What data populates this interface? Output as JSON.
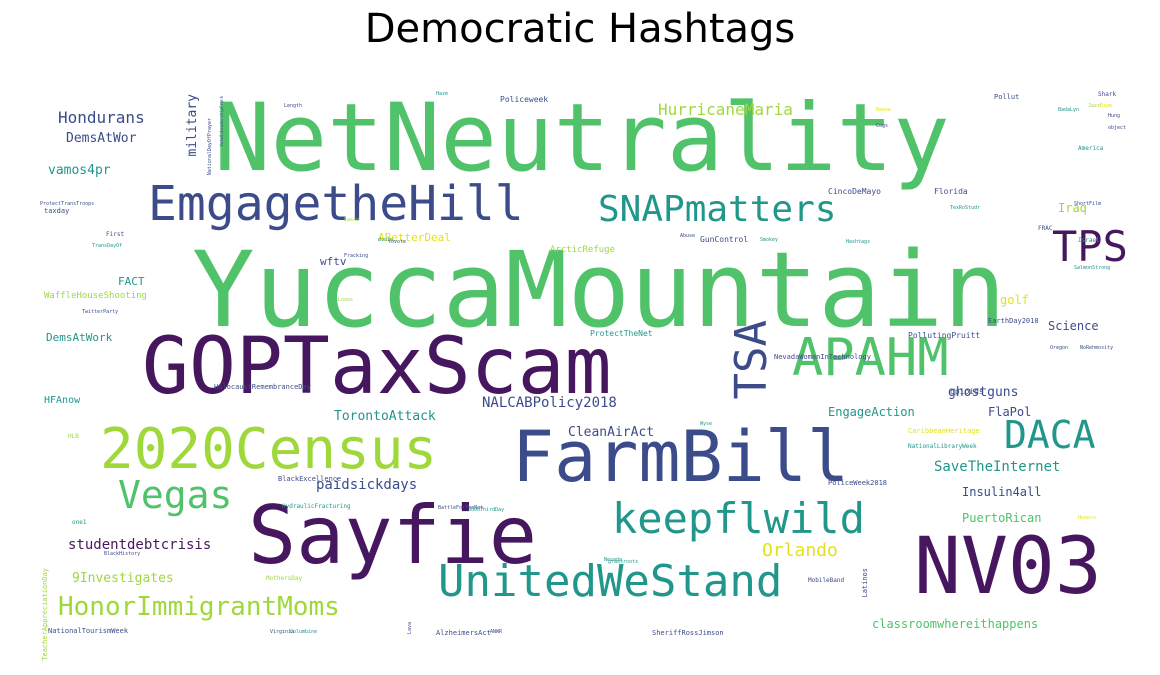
{
  "title": "Democratic Hashtags",
  "palette": {
    "purple": "#46175e",
    "darkblue": "#3c4c8a",
    "teal": "#21968b",
    "green": "#50c26a",
    "lime": "#9fd83b",
    "yellow": "#e3e21a"
  },
  "words": [
    {
      "text": "NetNeutrality",
      "color": "#50c26a",
      "weight": 100
    },
    {
      "text": "YuccaMountain",
      "color": "#50c26a",
      "weight": 98
    },
    {
      "text": "GOPTaxScam",
      "color": "#46175e",
      "weight": 80
    },
    {
      "text": "Sayfie",
      "color": "#46175e",
      "weight": 78
    },
    {
      "text": "FarmBill",
      "color": "#3c4c8a",
      "weight": 70
    },
    {
      "text": "NV03",
      "color": "#46175e",
      "weight": 72
    },
    {
      "text": "2020Census",
      "color": "#9fd83b",
      "weight": 58
    },
    {
      "text": "EmgagetheHill",
      "color": "#3c4c8a",
      "weight": 48
    },
    {
      "text": "APAHM",
      "color": "#50c26a",
      "weight": 47
    },
    {
      "text": "UnitedWeStand",
      "color": "#21968b",
      "weight": 44
    },
    {
      "text": "keepflwild",
      "color": "#21968b",
      "weight": 44
    },
    {
      "text": "SNAPmatters",
      "color": "#21968b",
      "weight": 36
    },
    {
      "text": "DACA",
      "color": "#21968b",
      "weight": 38
    },
    {
      "text": "TPS",
      "color": "#46175e",
      "weight": 42
    },
    {
      "text": "Vegas",
      "color": "#50c26a",
      "weight": 36
    },
    {
      "text": "TSA",
      "color": "#3c4c8a",
      "weight": 42
    },
    {
      "text": "HonorImmigrantMoms",
      "color": "#9fd83b",
      "weight": 28
    },
    {
      "text": "Orlando",
      "color": "#e3e21a",
      "weight": 18
    },
    {
      "text": "HurricaneMaria",
      "color": "#9fd83b",
      "weight": 14
    },
    {
      "text": "Hondurans",
      "color": "#3c4c8a",
      "weight": 16
    },
    {
      "text": "DemsAtWor",
      "color": "#3c4c8a",
      "weight": 13
    },
    {
      "text": "vamos4pr",
      "color": "#21968b",
      "weight": 13
    },
    {
      "text": "military",
      "color": "#3c4c8a",
      "weight": 13
    },
    {
      "text": "studentdebtcrisis",
      "color": "#46175e",
      "weight": 14
    },
    {
      "text": "paidsickdays",
      "color": "#3c4c8a",
      "weight": 14
    },
    {
      "text": "9Investigates",
      "color": "#9fd83b",
      "weight": 13
    },
    {
      "text": "NALCABPolicy2018",
      "color": "#3c4c8a",
      "weight": 14
    },
    {
      "text": "TorontoAttack",
      "color": "#21968b",
      "weight": 13
    },
    {
      "text": "CleanAirAct",
      "color": "#3c4c8a",
      "weight": 13
    },
    {
      "text": "SaveTheInternet",
      "color": "#21968b",
      "weight": 14
    },
    {
      "text": "Insulin4all",
      "color": "#3c4c8a",
      "weight": 12
    },
    {
      "text": "PuertoRican",
      "color": "#50c26a",
      "weight": 12
    },
    {
      "text": "classroomwhereithappens",
      "color": "#50c26a",
      "weight": 12
    },
    {
      "text": "EngageAction",
      "color": "#21968b",
      "weight": 12
    },
    {
      "text": "ghostguns",
      "color": "#3c4c8a",
      "weight": 13
    },
    {
      "text": "FlaPol",
      "color": "#3c4c8a",
      "weight": 12
    },
    {
      "text": "Science",
      "color": "#3c4c8a",
      "weight": 12
    },
    {
      "text": "golf",
      "color": "#e3e21a",
      "weight": 12
    },
    {
      "text": "Iraq",
      "color": "#9fd83b",
      "weight": 12
    },
    {
      "text": "ABetterDeal",
      "color": "#e3e21a",
      "weight": 11
    },
    {
      "text": "wftv",
      "color": "#3c4c8a",
      "weight": 11
    },
    {
      "text": "FACT",
      "color": "#21968b",
      "weight": 11
    },
    {
      "text": "WaffleHouseShooting",
      "color": "#9fd83b",
      "weight": 9
    },
    {
      "text": "DemsAtWork",
      "color": "#21968b",
      "weight": 11
    },
    {
      "text": "HFAnow",
      "color": "#21968b",
      "weight": 10
    },
    {
      "text": "ArcticRefuge",
      "color": "#9fd83b",
      "weight": 9
    },
    {
      "text": "Policeweek",
      "color": "#3c4c8a",
      "weight": 8
    },
    {
      "text": "Florida",
      "color": "#3c4c8a",
      "weight": 8
    },
    {
      "text": "CincoDeMayo",
      "color": "#3c4c8a",
      "weight": 8
    },
    {
      "text": "GunControl",
      "color": "#3c4c8a",
      "weight": 8
    },
    {
      "text": "ProtectTheNet",
      "color": "#21968b",
      "weight": 8
    },
    {
      "text": "NevadaWomanInTechnology",
      "color": "#3c4c8a",
      "weight": 7
    },
    {
      "text": "PollutingPruitt",
      "color": "#3c4c8a",
      "weight": 8
    },
    {
      "text": "EarthDay2018",
      "color": "#3c4c8a",
      "weight": 7
    },
    {
      "text": "HolocaustRemembranceDay",
      "color": "#3c4c8a",
      "weight": 7
    },
    {
      "text": "opioids",
      "color": "#3c4c8a",
      "weight": 8
    },
    {
      "text": "CaribbeanHeritage",
      "color": "#e3e21a",
      "weight": 7
    },
    {
      "text": "NationalLibraryWeek",
      "color": "#21968b",
      "weight": 6
    },
    {
      "text": "PoliceWeek2018",
      "color": "#3c4c8a",
      "weight": 7
    },
    {
      "text": "BlackExcellence",
      "color": "#3c4c8a",
      "weight": 7
    },
    {
      "text": "HydraulicFracturing",
      "color": "#21968b",
      "weight": 6
    },
    {
      "text": "TeacherAppreciationDay",
      "color": "#9fd83b",
      "weight": 7
    },
    {
      "text": "MothersDay",
      "color": "#9fd83b",
      "weight": 6
    },
    {
      "text": "NationalTourismWeek",
      "color": "#3c4c8a",
      "weight": 7
    },
    {
      "text": "AlzheimersAct",
      "color": "#3c4c8a",
      "weight": 7
    },
    {
      "text": "SheriffRossJimson",
      "color": "#3c4c8a",
      "weight": 7
    },
    {
      "text": "Latinos",
      "color": "#3c4c8a",
      "weight": 7
    },
    {
      "text": "Pollut",
      "color": "#3c4c8a",
      "weight": 7
    },
    {
      "text": "Shark",
      "color": "#3c4c8a",
      "weight": 6
    },
    {
      "text": "America",
      "color": "#21968b",
      "weight": 6
    },
    {
      "text": "Israel",
      "color": "#21968b",
      "weight": 6
    },
    {
      "text": "FRAC",
      "color": "#3c4c8a",
      "weight": 6
    },
    {
      "text": "taxday",
      "color": "#3c4c8a",
      "weight": 7
    },
    {
      "text": "First",
      "color": "#3c4c8a",
      "weight": 6
    },
    {
      "text": "Length",
      "color": "#3c4c8a",
      "weight": 5
    },
    {
      "text": "BadaLyn",
      "color": "#21968b",
      "weight": 5
    },
    {
      "text": "NationalDayOfPrayer",
      "color": "#3c4c8a",
      "weight": 5
    },
    {
      "text": "VoteOnLeadershipFrank",
      "color": "#3c4c8a",
      "weight": 4
    },
    {
      "text": "ProtectTransTroops",
      "color": "#3c4c8a",
      "weight": 5
    },
    {
      "text": "TransDayOf",
      "color": "#21968b",
      "weight": 5
    },
    {
      "text": "TwitterParty",
      "color": "#3c4c8a",
      "weight": 5
    },
    {
      "text": "Fracking",
      "color": "#3c4c8a",
      "weight": 5
    },
    {
      "text": "Hashtags",
      "color": "#21968b",
      "weight": 5
    },
    {
      "text": "SalmonStrong",
      "color": "#21968b",
      "weight": 5
    },
    {
      "text": "NoRehmosity",
      "color": "#3c4c8a",
      "weight": 5
    },
    {
      "text": "ShortFilm",
      "color": "#3c4c8a",
      "weight": 5
    },
    {
      "text": "object",
      "color": "#3c4c8a",
      "weight": 5
    },
    {
      "text": "Hung",
      "color": "#3c4c8a",
      "weight": 5
    },
    {
      "text": "TexRoStudr",
      "color": "#21968b",
      "weight": 5
    },
    {
      "text": "BlackHistory",
      "color": "#3c4c8a",
      "weight": 5
    },
    {
      "text": "BattleForTheNet",
      "color": "#3c4c8a",
      "weight": 5
    },
    {
      "text": "3000ThirdDay",
      "color": "#21968b",
      "weight": 5
    },
    {
      "text": "Nevada",
      "color": "#21968b",
      "weight": 5
    },
    {
      "text": "Virginia",
      "color": "#3c4c8a",
      "weight": 5
    },
    {
      "text": "Columbine",
      "color": "#21968b",
      "weight": 5
    },
    {
      "text": "grassroots",
      "color": "#21968b",
      "weight": 5
    },
    {
      "text": "MobileBand",
      "color": "#3c4c8a",
      "weight": 6
    },
    {
      "text": "HLB",
      "color": "#9fd83b",
      "weight": 6
    },
    {
      "text": "one1",
      "color": "#21968b",
      "weight": 6
    },
    {
      "text": "Lava",
      "color": "#3c4c8a",
      "weight": 5
    },
    {
      "text": "ANWR",
      "color": "#3c4c8a",
      "weight": 5
    },
    {
      "text": "tovote",
      "color": "#3c4c8a",
      "weight": 5
    },
    {
      "text": "dvote",
      "color": "#21968b",
      "weight": 5
    },
    {
      "text": "Abuse",
      "color": "#3c4c8a",
      "weight": 5
    },
    {
      "text": "Oregon",
      "color": "#3c4c8a",
      "weight": 5
    },
    {
      "text": "Smokey",
      "color": "#21968b",
      "weight": 5
    },
    {
      "text": "Honors",
      "color": "#e3e21a",
      "weight": 5
    },
    {
      "text": "Loons",
      "color": "#9fd83b",
      "weight": 5
    },
    {
      "text": "Lasso",
      "color": "#9fd83b",
      "weight": 5
    },
    {
      "text": "Haze",
      "color": "#21968b",
      "weight": 5
    },
    {
      "text": "Ripe",
      "color": "#e3e21a",
      "weight": 5
    },
    {
      "text": "Jazz",
      "color": "#9fd83b",
      "weight": 5
    },
    {
      "text": "Wyse",
      "color": "#21968b",
      "weight": 5
    },
    {
      "text": "Cogs",
      "color": "#3c4c8a",
      "weight": 5
    },
    {
      "text": "Reese",
      "color": "#e3e21a",
      "weight": 5
    }
  ]
}
